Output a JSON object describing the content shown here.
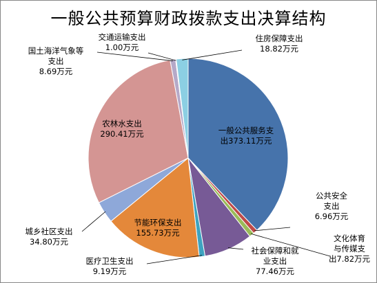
{
  "chart_data": {
    "type": "pie",
    "title": "一般公共预算财政拨款支出决算结构",
    "slices": [
      {
        "name": "一般公共服务支出",
        "value": 373.11,
        "value_label": "373.11万元",
        "color": "#4673AB",
        "label_lines": [
          "一般公共服务支",
          "出373.11万元"
        ]
      },
      {
        "name": "公共安全支出",
        "value": 6.96,
        "value_label": "6.96万元",
        "color": "#BF4A48",
        "label_lines": [
          "公共安全",
          "支出",
          "6.96万元"
        ]
      },
      {
        "name": "文化体育与传媒支出",
        "value": 7.82,
        "value_label": "7.82万元",
        "color": "#9ABB59",
        "label_lines": [
          "文化体育",
          "与传媒支",
          "出7.82万元"
        ]
      },
      {
        "name": "社会保障和就业支出",
        "value": 77.46,
        "value_label": "77.46万元",
        "color": "#775A96",
        "label_lines": [
          "社会保障和就",
          "业支出",
          "77.46万元"
        ]
      },
      {
        "name": "医疗卫生支出",
        "value": 9.19,
        "value_label": "9.19万元",
        "color": "#3EA3C0",
        "label_lines": [
          "医疗卫生支出",
          "9.19万元"
        ]
      },
      {
        "name": "节能环保支出",
        "value": 155.73,
        "value_label": "155.73万元",
        "color": "#E4883A",
        "label_lines": [
          "节能环保支出",
          "155.73万元"
        ]
      },
      {
        "name": "城乡社区支出",
        "value": 34.8,
        "value_label": "34.80万元",
        "color": "#8EA8D9",
        "label_lines": [
          "城乡社区支出",
          "34.80万元"
        ]
      },
      {
        "name": "农林水支出",
        "value": 290.41,
        "value_label": "290.41万元",
        "color": "#D49593",
        "label_lines": [
          "农林水支出",
          "290.41万元"
        ]
      },
      {
        "name": "国土海洋气象等支出",
        "value": 8.69,
        "value_label": "8.69万元",
        "color": "#B5A9C8",
        "label_lines": [
          "国土海洋气象等",
          "支出",
          "8.69万元"
        ]
      },
      {
        "name": "交通运输支出",
        "value": 1.0,
        "value_label": "1.00万元",
        "color": "#F2B889",
        "label_lines": [
          "交通运输支出",
          "1.00万元"
        ]
      },
      {
        "name": "住房保障支出",
        "value": 18.82,
        "value_label": "18.82万元",
        "color": "#8CCFE3",
        "label_lines": [
          "住房保障支出",
          "18.82万元"
        ]
      }
    ],
    "legend": "none"
  }
}
